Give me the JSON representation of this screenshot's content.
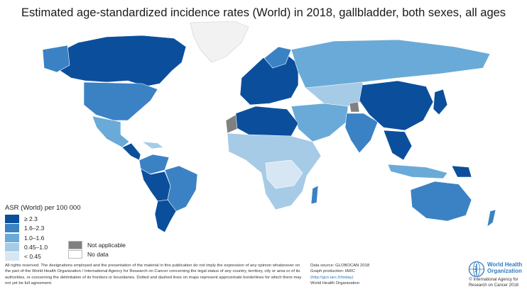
{
  "title": "Estimated age-standardized incidence rates (World) in 2018, gallbladder, both sexes, all ages",
  "legend": {
    "title": "ASR (World) per 100 000",
    "bins": [
      {
        "label": "≥ 2.3",
        "color": "#0b4f9c"
      },
      {
        "label": "1.6–2.3",
        "color": "#3b82c4"
      },
      {
        "label": "1.0–1.6",
        "color": "#6aaad8"
      },
      {
        "label": "0.45–1.0",
        "color": "#a6cbe6"
      },
      {
        "label": "< 0.45",
        "color": "#d7e6f3"
      }
    ],
    "extra": [
      {
        "label": "Not applicable",
        "color": "#808080"
      },
      {
        "label": "No data",
        "color": "#ffffff"
      }
    ]
  },
  "disclaimer": "All rights reserved. The designations employed and the presentation of the material in this publication do not imply the expression of any opinion whatsoever on the part of the World Health Organization / International Agency for Research on Cancer concerning the legal status of any country, territory, city or area or of its authorities, or concerning the delimitation of its frontiers or boundaries. Dotted and dashed lines on maps represent approximate borderlines for which there may not yet be full agreement.",
  "source": {
    "line1": "Data source: GLOBOCAN 2018",
    "line2": "Graph production: IARC",
    "line3": "(http://gco.iarc.fr/today)",
    "line4": "World Health Organization"
  },
  "who": {
    "name_line1": "World Health",
    "name_line2": "Organization",
    "credit": "© International Agency for Research on Cancer 2018"
  },
  "map_regions": [
    {
      "name": "greenland",
      "bin": "no-data"
    },
    {
      "name": "canada",
      "bin": "≥ 2.3"
    },
    {
      "name": "usa",
      "bin": "1.6–2.3"
    },
    {
      "name": "mexico",
      "bin": "1.0–1.6"
    },
    {
      "name": "central-america",
      "bin": "≥ 2.3"
    },
    {
      "name": "colombia-venezuela",
      "bin": "1.6–2.3"
    },
    {
      "name": "brazil",
      "bin": "1.6–2.3"
    },
    {
      "name": "peru-bolivia",
      "bin": "≥ 2.3"
    },
    {
      "name": "chile",
      "bin": "≥ 2.3"
    },
    {
      "name": "argentina",
      "bin": "≥ 2.3"
    },
    {
      "name": "europe",
      "bin": "≥ 2.3"
    },
    {
      "name": "russia",
      "bin": "1.0–1.6"
    },
    {
      "name": "north-africa",
      "bin": "≥ 2.3"
    },
    {
      "name": "western-sahara",
      "bin": "Not applicable"
    },
    {
      "name": "sub-saharan-africa",
      "bin": "0.45–1.0"
    },
    {
      "name": "middle-east",
      "bin": "1.0–1.6"
    },
    {
      "name": "kashmir",
      "bin": "Not applicable"
    },
    {
      "name": "india",
      "bin": "1.6–2.3"
    },
    {
      "name": "china",
      "bin": "≥ 2.3"
    },
    {
      "name": "japan-korea",
      "bin": "≥ 2.3"
    },
    {
      "name": "southeast-asia",
      "bin": "≥ 2.3"
    },
    {
      "name": "indonesia",
      "bin": "1.0–1.6"
    },
    {
      "name": "australia",
      "bin": "1.6–2.3"
    },
    {
      "name": "papua-new-guinea",
      "bin": "≥ 2.3"
    }
  ]
}
